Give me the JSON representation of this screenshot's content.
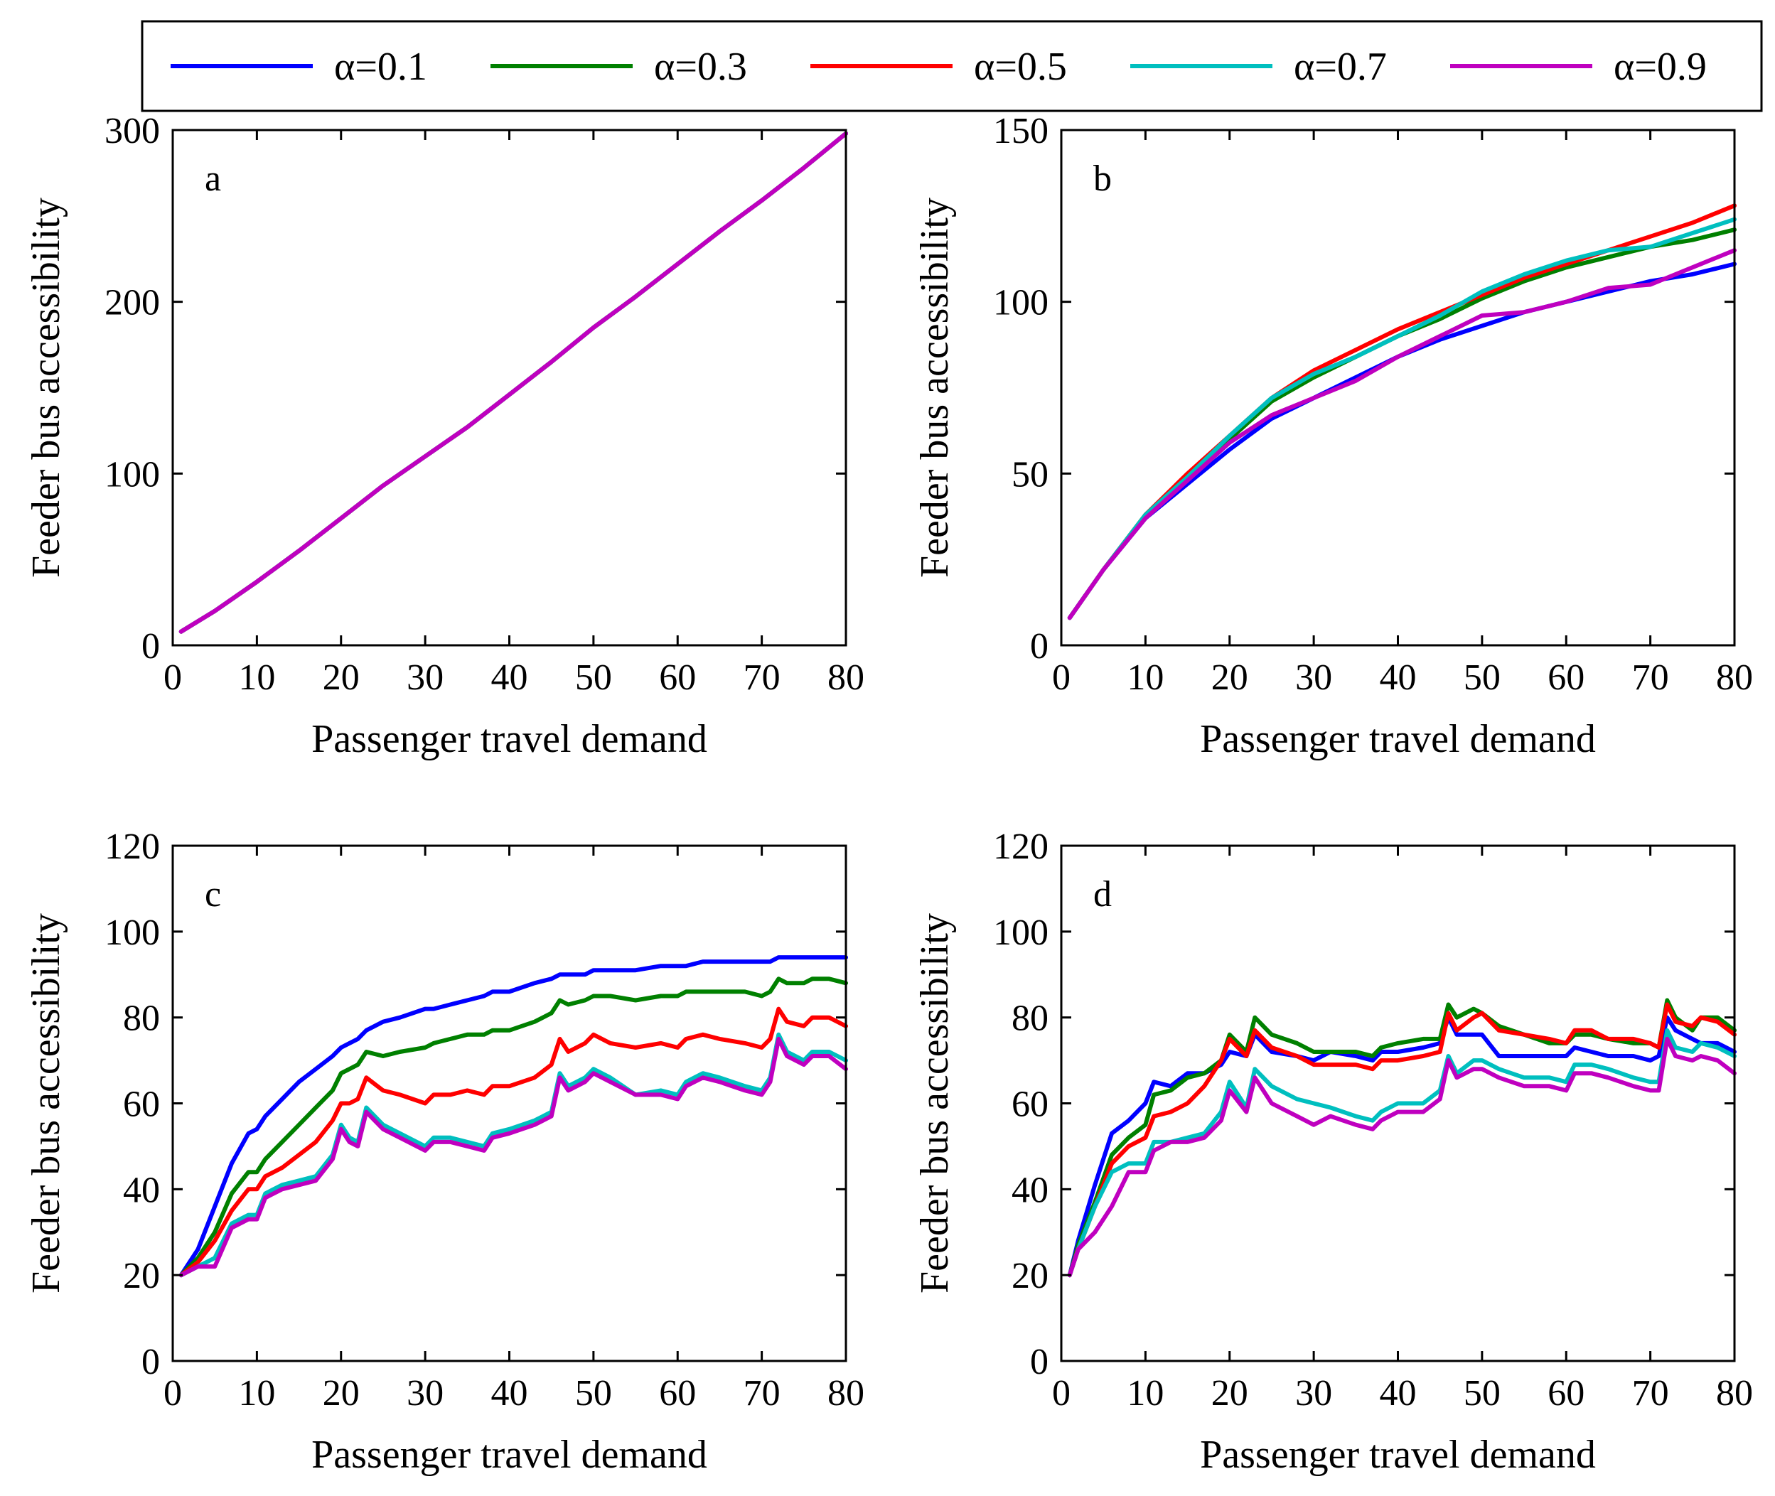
{
  "legend": {
    "entries": [
      {
        "label": "α=0.1",
        "color": "#0000ff"
      },
      {
        "label": "α=0.3",
        "color": "#008000"
      },
      {
        "label": "α=0.5",
        "color": "#ff0000"
      },
      {
        "label": "α=0.7",
        "color": "#00bfbf"
      },
      {
        "label": "α=0.9",
        "color": "#bf00bf"
      }
    ]
  },
  "chart_data": [
    {
      "type": "line",
      "panel_label": "a",
      "xlabel": "Passenger travel demand",
      "ylabel": "Feeder bus accessibility",
      "xlim": [
        0,
        80
      ],
      "ylim": [
        0,
        300
      ],
      "xticks": [
        0,
        10,
        20,
        30,
        40,
        50,
        60,
        70,
        80
      ],
      "yticks": [
        0,
        100,
        200,
        300
      ],
      "x": [
        1,
        5,
        10,
        15,
        20,
        25,
        30,
        35,
        40,
        45,
        50,
        55,
        60,
        65,
        70,
        75,
        80
      ],
      "series": [
        {
          "name": "α=0.1",
          "values": [
            8,
            20,
            37,
            55,
            74,
            93,
            110,
            127,
            146,
            165,
            185,
            203,
            222,
            241,
            259,
            278,
            298
          ]
        },
        {
          "name": "α=0.3",
          "values": [
            8,
            20,
            37,
            55,
            74,
            93,
            110,
            127,
            146,
            165,
            185,
            203,
            222,
            241,
            259,
            278,
            298
          ]
        },
        {
          "name": "α=0.5",
          "values": [
            8,
            20,
            37,
            55,
            74,
            93,
            110,
            127,
            146,
            165,
            185,
            203,
            222,
            241,
            259,
            278,
            298
          ]
        },
        {
          "name": "α=0.7",
          "values": [
            8,
            20,
            37,
            55,
            74,
            93,
            110,
            127,
            146,
            165,
            185,
            203,
            222,
            241,
            259,
            278,
            298
          ]
        },
        {
          "name": "α=0.9",
          "values": [
            8,
            20,
            37,
            55,
            74,
            93,
            110,
            127,
            146,
            165,
            185,
            203,
            222,
            241,
            259,
            278,
            298
          ]
        }
      ]
    },
    {
      "type": "line",
      "panel_label": "b",
      "xlabel": "Passenger travel demand",
      "ylabel": "Feeder bus accessibility",
      "xlim": [
        0,
        80
      ],
      "ylim": [
        0,
        150
      ],
      "xticks": [
        0,
        10,
        20,
        30,
        40,
        50,
        60,
        70,
        80
      ],
      "yticks": [
        0,
        50,
        100,
        150
      ],
      "x": [
        1,
        5,
        10,
        15,
        20,
        25,
        30,
        35,
        40,
        45,
        50,
        55,
        60,
        65,
        70,
        75,
        80
      ],
      "series": [
        {
          "name": "α=0.1",
          "values": [
            8,
            22,
            37,
            47,
            57,
            66,
            72,
            78,
            84,
            89,
            93,
            97,
            100,
            103,
            106,
            108,
            111
          ]
        },
        {
          "name": "α=0.3",
          "values": [
            8,
            22,
            38,
            49,
            60,
            71,
            78,
            84,
            90,
            95,
            101,
            106,
            110,
            113,
            116,
            118,
            121
          ]
        },
        {
          "name": "α=0.5",
          "values": [
            8,
            22,
            38,
            50,
            61,
            72,
            80,
            86,
            92,
            97,
            102,
            107,
            111,
            115,
            119,
            123,
            128
          ]
        },
        {
          "name": "α=0.7",
          "values": [
            8,
            22,
            38,
            49,
            61,
            72,
            79,
            84,
            90,
            96,
            103,
            108,
            112,
            115,
            116,
            120,
            124
          ]
        },
        {
          "name": "α=0.9",
          "values": [
            8,
            22,
            37,
            48,
            59,
            67,
            72,
            77,
            84,
            90,
            96,
            97,
            100,
            104,
            105,
            110,
            115
          ]
        }
      ]
    },
    {
      "type": "line",
      "panel_label": "c",
      "xlabel": "Passenger travel demand",
      "ylabel": "Feeder bus accessibility",
      "xlim": [
        0,
        80
      ],
      "ylim": [
        0,
        120
      ],
      "xticks": [
        0,
        10,
        20,
        30,
        40,
        50,
        60,
        70,
        80
      ],
      "yticks": [
        0,
        20,
        40,
        60,
        80,
        100,
        120
      ],
      "x": [
        1,
        3,
        5,
        7,
        9,
        10,
        11,
        13,
        15,
        17,
        19,
        20,
        21,
        22,
        23,
        25,
        27,
        30,
        31,
        33,
        35,
        37,
        38,
        40,
        43,
        45,
        46,
        47,
        49,
        50,
        52,
        55,
        58,
        60,
        61,
        63,
        65,
        68,
        70,
        71,
        72,
        73,
        75,
        76,
        78,
        80
      ],
      "series": [
        {
          "name": "α=0.1",
          "values": [
            20,
            26,
            36,
            46,
            53,
            54,
            57,
            61,
            65,
            68,
            71,
            73,
            74,
            75,
            77,
            79,
            80,
            82,
            82,
            83,
            84,
            85,
            86,
            86,
            88,
            89,
            90,
            90,
            90,
            91,
            91,
            91,
            92,
            92,
            92,
            93,
            93,
            93,
            93,
            93,
            94,
            94,
            94,
            94,
            94,
            94
          ]
        },
        {
          "name": "α=0.3",
          "values": [
            20,
            24,
            30,
            39,
            44,
            44,
            47,
            51,
            55,
            59,
            63,
            67,
            68,
            69,
            72,
            71,
            72,
            73,
            74,
            75,
            76,
            76,
            77,
            77,
            79,
            81,
            84,
            83,
            84,
            85,
            85,
            84,
            85,
            85,
            86,
            86,
            86,
            86,
            85,
            86,
            89,
            88,
            88,
            89,
            89,
            88
          ]
        },
        {
          "name": "α=0.5",
          "values": [
            20,
            23,
            28,
            35,
            40,
            40,
            43,
            45,
            48,
            51,
            56,
            60,
            60,
            61,
            66,
            63,
            62,
            60,
            62,
            62,
            63,
            62,
            64,
            64,
            66,
            69,
            75,
            72,
            74,
            76,
            74,
            73,
            74,
            73,
            75,
            76,
            75,
            74,
            73,
            75,
            82,
            79,
            78,
            80,
            80,
            78
          ]
        },
        {
          "name": "α=0.7",
          "values": [
            20,
            22,
            24,
            32,
            34,
            34,
            39,
            41,
            42,
            43,
            48,
            55,
            52,
            51,
            59,
            55,
            53,
            50,
            52,
            52,
            51,
            50,
            53,
            54,
            56,
            58,
            67,
            64,
            66,
            68,
            66,
            62,
            63,
            62,
            65,
            67,
            66,
            64,
            63,
            66,
            76,
            72,
            70,
            72,
            72,
            70
          ]
        },
        {
          "name": "α=0.9",
          "values": [
            20,
            22,
            22,
            31,
            33,
            33,
            38,
            40,
            41,
            42,
            47,
            54,
            51,
            50,
            58,
            54,
            52,
            49,
            51,
            51,
            50,
            49,
            52,
            53,
            55,
            57,
            66,
            63,
            65,
            67,
            65,
            62,
            62,
            61,
            64,
            66,
            65,
            63,
            62,
            65,
            75,
            71,
            69,
            71,
            71,
            68
          ]
        }
      ]
    },
    {
      "type": "line",
      "panel_label": "d",
      "xlabel": "Passenger travel demand",
      "ylabel": "Feeder bus accessibility",
      "xlim": [
        0,
        80
      ],
      "ylim": [
        0,
        120
      ],
      "xticks": [
        0,
        10,
        20,
        30,
        40,
        50,
        60,
        70,
        80
      ],
      "yticks": [
        0,
        20,
        40,
        60,
        80,
        100,
        120
      ],
      "x": [
        1,
        2,
        4,
        6,
        8,
        10,
        11,
        13,
        15,
        17,
        19,
        20,
        22,
        23,
        25,
        28,
        30,
        32,
        35,
        37,
        38,
        40,
        43,
        45,
        46,
        47,
        49,
        50,
        52,
        55,
        58,
        60,
        61,
        63,
        65,
        68,
        70,
        71,
        72,
        73,
        75,
        76,
        78,
        80
      ],
      "series": [
        {
          "name": "α=0.1",
          "values": [
            20,
            28,
            41,
            53,
            56,
            60,
            65,
            64,
            67,
            67,
            69,
            72,
            71,
            76,
            72,
            71,
            70,
            72,
            71,
            70,
            72,
            72,
            73,
            74,
            80,
            76,
            76,
            76,
            71,
            71,
            71,
            71,
            73,
            72,
            71,
            71,
            70,
            71,
            80,
            77,
            75,
            74,
            74,
            72
          ]
        },
        {
          "name": "α=0.3",
          "values": [
            20,
            27,
            37,
            48,
            52,
            55,
            62,
            63,
            66,
            67,
            70,
            76,
            72,
            80,
            76,
            74,
            72,
            72,
            72,
            71,
            73,
            74,
            75,
            75,
            83,
            80,
            82,
            81,
            78,
            76,
            74,
            74,
            76,
            76,
            75,
            74,
            74,
            73,
            84,
            80,
            77,
            80,
            80,
            77
          ]
        },
        {
          "name": "α=0.5",
          "values": [
            20,
            26,
            36,
            46,
            50,
            52,
            57,
            58,
            60,
            64,
            70,
            75,
            71,
            77,
            73,
            71,
            69,
            69,
            69,
            68,
            70,
            70,
            71,
            72,
            81,
            77,
            80,
            81,
            77,
            76,
            75,
            74,
            77,
            77,
            75,
            75,
            74,
            73,
            83,
            79,
            78,
            80,
            79,
            76
          ]
        },
        {
          "name": "α=0.7",
          "values": [
            20,
            26,
            36,
            44,
            46,
            46,
            51,
            51,
            52,
            53,
            58,
            65,
            59,
            68,
            64,
            61,
            60,
            59,
            57,
            56,
            58,
            60,
            60,
            63,
            71,
            67,
            70,
            70,
            68,
            66,
            66,
            65,
            69,
            69,
            68,
            66,
            65,
            65,
            77,
            73,
            72,
            74,
            73,
            71
          ]
        },
        {
          "name": "α=0.9",
          "values": [
            20,
            26,
            30,
            36,
            44,
            44,
            49,
            51,
            51,
            52,
            56,
            63,
            58,
            66,
            60,
            57,
            55,
            57,
            55,
            54,
            56,
            58,
            58,
            61,
            70,
            66,
            68,
            68,
            66,
            64,
            64,
            63,
            67,
            67,
            66,
            64,
            63,
            63,
            75,
            71,
            70,
            71,
            70,
            67
          ]
        }
      ]
    }
  ]
}
